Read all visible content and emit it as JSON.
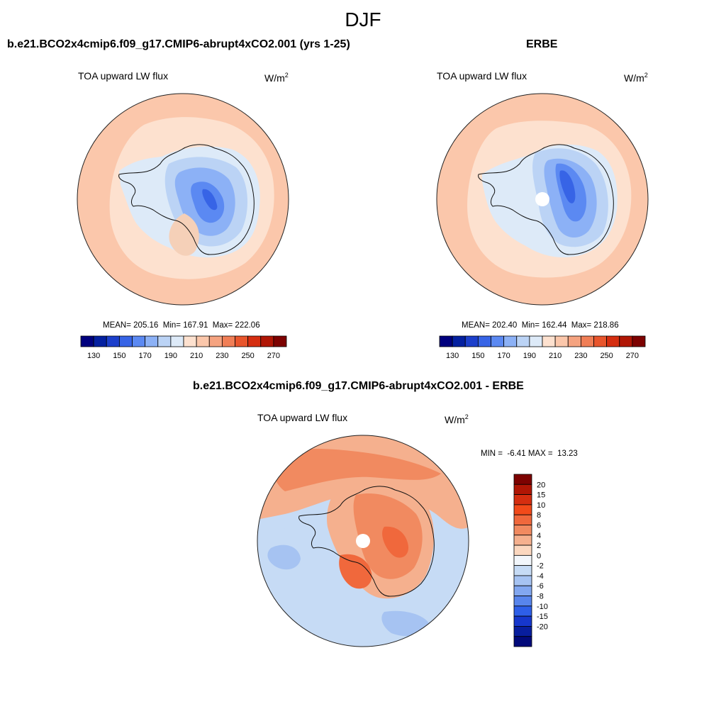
{
  "figure": {
    "title": "DJF",
    "units_prefix": "W/m",
    "units_exponent": "2"
  },
  "panels": [
    {
      "id": "model",
      "title": "b.e21.BCO2x4cmip6.f09_g17.CMIP6-abrupt4xCO2.001 (yrs 1-25)",
      "variable": "TOA upward LW flux",
      "stats": {
        "mean_label": "MEAN=",
        "mean": "205.16",
        "min_label": "Min=",
        "min": "167.91",
        "max_label": "Max=",
        "max": "222.06"
      }
    },
    {
      "id": "obs",
      "title": "ERBE",
      "variable": "TOA upward LW flux",
      "stats": {
        "mean_label": "MEAN=",
        "mean": "202.40",
        "min_label": "Min=",
        "min": "162.44",
        "max_label": "Max=",
        "max": "218.86"
      }
    },
    {
      "id": "diff",
      "title": "b.e21.BCO2x4cmip6.f09_g17.CMIP6-abrupt4xCO2.001 - ERBE",
      "variable": "TOA upward LW flux",
      "stats": {
        "min_label": "MIN =",
        "min": "-6.41",
        "max_label": "MAX =",
        "max": "13.23"
      }
    }
  ],
  "colorbars": {
    "abs": {
      "colors": [
        "#00007e",
        "#0420a0",
        "#1c3fcb",
        "#3764e6",
        "#5b89f2",
        "#8cb1f6",
        "#bbd3f5",
        "#ddeaf8",
        "#fde1cf",
        "#fbc7ab",
        "#f5a380",
        "#f07e56",
        "#e8552c",
        "#d52e10",
        "#b01605",
        "#7d0201"
      ],
      "tick_labels": [
        "130",
        "150",
        "170",
        "190",
        "210",
        "230",
        "250",
        "270"
      ]
    },
    "diff": {
      "colors": [
        "#7d0201",
        "#b01605",
        "#d52e10",
        "#f24a1a",
        "#f0683c",
        "#f18a60",
        "#f5b08e",
        "#fbd7bf",
        "#f2f6fb",
        "#c6dbf5",
        "#a6c3f2",
        "#82a7f0",
        "#5885ec",
        "#2e5fe8",
        "#1637cc",
        "#081e9e",
        "#020a7a"
      ],
      "tick_labels": [
        "20",
        "15",
        "10",
        "8",
        "6",
        "4",
        "2",
        "0",
        "-2",
        "-4",
        "-6",
        "-8",
        "-10",
        "-15",
        "-20"
      ]
    }
  }
}
